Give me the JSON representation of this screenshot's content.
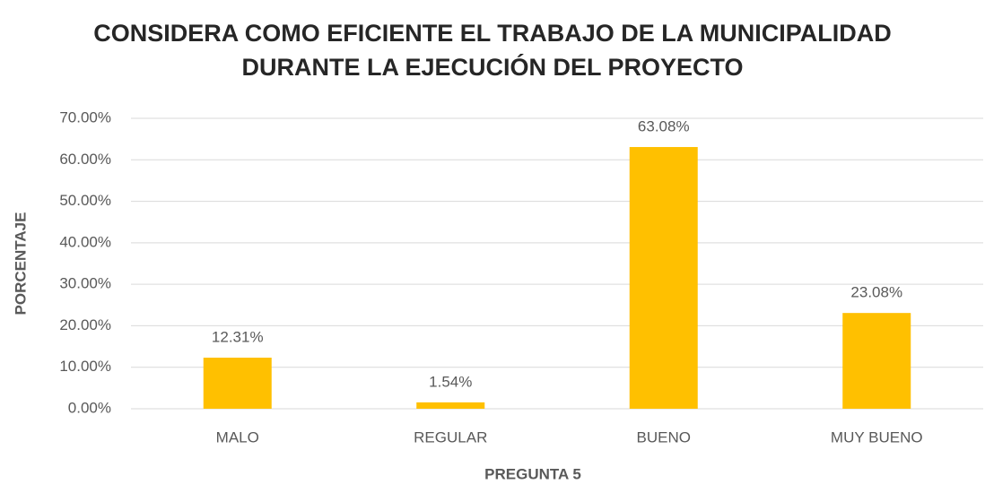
{
  "chart_data": {
    "type": "bar",
    "title": "CONSIDERA COMO EFICIENTE EL TRABAJO DE LA MUNICIPALIDAD DURANTE LA EJECUCIÓN DEL PROYECTO",
    "x_label": "PREGUNTA 5",
    "y_label": "PORCENTAJE",
    "categories": [
      "MALO",
      "REGULAR",
      "BUENO",
      "MUY BUENO"
    ],
    "values": [
      12.31,
      1.54,
      63.08,
      23.08
    ],
    "value_labels": [
      "12.31%",
      "1.54%",
      "63.08%",
      "23.08%"
    ],
    "color": "#ffc000",
    "ylim": [
      0,
      70
    ],
    "yticks": [
      {
        "value": 0,
        "label": "0.00%"
      },
      {
        "value": 10,
        "label": "10.00%"
      },
      {
        "value": 20,
        "label": "20.00%"
      },
      {
        "value": 30,
        "label": "30.00%"
      },
      {
        "value": 40,
        "label": "40.00%"
      },
      {
        "value": 50,
        "label": "50.00%"
      },
      {
        "value": 60,
        "label": "60.00%"
      },
      {
        "value": 70,
        "label": "70.00%"
      }
    ],
    "grid": true
  }
}
